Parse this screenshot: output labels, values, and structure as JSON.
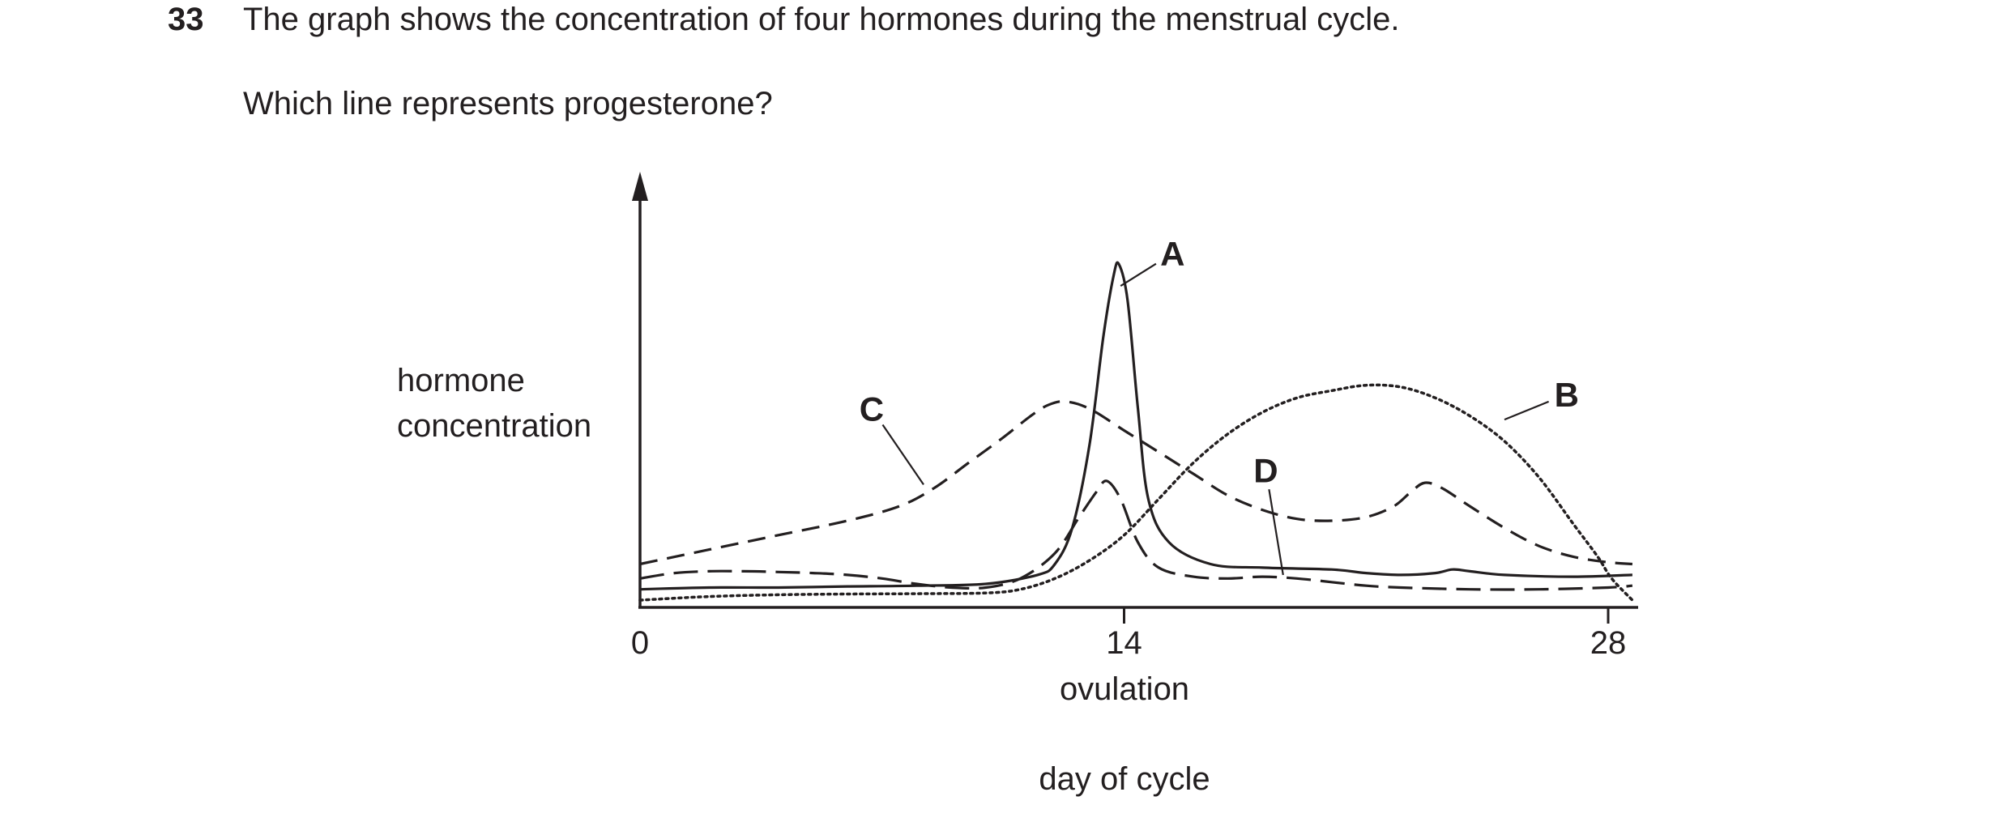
{
  "question": {
    "number": "33",
    "text": "The graph shows the concentration of four hormones during the menstrual cycle.",
    "prompt": "Which line represents progesterone?"
  },
  "chart_data": {
    "type": "line",
    "ylabel_lines": [
      "hormone",
      "concentration"
    ],
    "xlabel": "day of cycle",
    "x_annotation": "ovulation",
    "xlim": [
      0,
      28.7
    ],
    "ylim": [
      0,
      100
    ],
    "x_ticks": [
      {
        "value": 0,
        "label": "0"
      },
      {
        "value": 14,
        "label": "14"
      },
      {
        "value": 28,
        "label": "28"
      }
    ],
    "series": [
      {
        "name": "A",
        "style": "solid",
        "label_at": {
          "x": 15.4,
          "y": 98
        },
        "leader_at": {
          "x": 13.9,
          "y": 89
        },
        "points": [
          [
            0,
            5
          ],
          [
            2,
            5.5
          ],
          [
            4,
            5.5
          ],
          [
            6,
            5.8
          ],
          [
            8,
            6
          ],
          [
            10,
            6.5
          ],
          [
            11.5,
            9
          ],
          [
            12,
            12
          ],
          [
            12.5,
            22
          ],
          [
            13,
            45
          ],
          [
            13.4,
            75
          ],
          [
            13.7,
            92
          ],
          [
            13.85,
            95
          ],
          [
            14.1,
            85
          ],
          [
            14.4,
            55
          ],
          [
            14.7,
            30
          ],
          [
            15.3,
            18
          ],
          [
            16.5,
            12
          ],
          [
            18,
            11
          ],
          [
            20,
            10.5
          ],
          [
            21,
            9.5
          ],
          [
            22,
            9
          ],
          [
            23,
            9.5
          ],
          [
            23.5,
            10.5
          ],
          [
            24,
            10
          ],
          [
            25,
            9
          ],
          [
            27,
            8.5
          ],
          [
            28.7,
            9
          ]
        ]
      },
      {
        "name": "B",
        "style": "dotted",
        "label_at": {
          "x": 26.8,
          "y": 59
        },
        "leader_at": {
          "x": 25,
          "y": 52
        },
        "points": [
          [
            0,
            2
          ],
          [
            2,
            3
          ],
          [
            4,
            3.5
          ],
          [
            6,
            3.7
          ],
          [
            8,
            3.8
          ],
          [
            10,
            4
          ],
          [
            11,
            5
          ],
          [
            12,
            8
          ],
          [
            13,
            13
          ],
          [
            14,
            20
          ],
          [
            15,
            30
          ],
          [
            16,
            40
          ],
          [
            17,
            48
          ],
          [
            18,
            54
          ],
          [
            19,
            58
          ],
          [
            20,
            60
          ],
          [
            21,
            61.5
          ],
          [
            22,
            61
          ],
          [
            23,
            58
          ],
          [
            24,
            53
          ],
          [
            25,
            46
          ],
          [
            26,
            36
          ],
          [
            27,
            23
          ],
          [
            27.7,
            14
          ],
          [
            28.1,
            8
          ],
          [
            28.7,
            2
          ]
        ]
      },
      {
        "name": "C",
        "style": "dashed",
        "label_at": {
          "x": 6.7,
          "y": 55
        },
        "leader_at": {
          "x": 8.2,
          "y": 34
        },
        "points": [
          [
            0,
            12
          ],
          [
            2,
            16
          ],
          [
            4,
            20
          ],
          [
            6,
            24
          ],
          [
            7.5,
            28
          ],
          [
            8.5,
            33
          ],
          [
            9.5,
            40
          ],
          [
            10.5,
            47
          ],
          [
            11.3,
            53
          ],
          [
            11.8,
            56
          ],
          [
            12.3,
            57
          ],
          [
            13,
            55
          ],
          [
            14,
            49
          ],
          [
            15,
            43
          ],
          [
            16,
            37
          ],
          [
            17,
            31
          ],
          [
            18,
            27
          ],
          [
            19,
            24.5
          ],
          [
            20,
            24
          ],
          [
            21,
            25
          ],
          [
            21.8,
            28
          ],
          [
            22.3,
            32
          ],
          [
            22.7,
            34.5
          ],
          [
            23.2,
            33
          ],
          [
            24,
            28
          ],
          [
            25,
            22
          ],
          [
            26,
            17
          ],
          [
            27,
            14
          ],
          [
            28,
            12.5
          ],
          [
            28.7,
            12
          ]
        ]
      },
      {
        "name": "D",
        "style": "dashed",
        "label_at": {
          "x": 18.1,
          "y": 38
        },
        "leader_at": {
          "x": 18.6,
          "y": 9
        },
        "points": [
          [
            0,
            8
          ],
          [
            1,
            9.5
          ],
          [
            2,
            10
          ],
          [
            3,
            10
          ],
          [
            4,
            9.8
          ],
          [
            5,
            9.5
          ],
          [
            6,
            9
          ],
          [
            7,
            8
          ],
          [
            8,
            6.5
          ],
          [
            9,
            5.5
          ],
          [
            10,
            5.5
          ],
          [
            11,
            8
          ],
          [
            12,
            15
          ],
          [
            12.7,
            25
          ],
          [
            13.2,
            32
          ],
          [
            13.5,
            35
          ],
          [
            13.9,
            30
          ],
          [
            14.4,
            18
          ],
          [
            15,
            11
          ],
          [
            16,
            8.5
          ],
          [
            17,
            8
          ],
          [
            18,
            8.5
          ],
          [
            19,
            8
          ],
          [
            20,
            7
          ],
          [
            21,
            6
          ],
          [
            22,
            5.5
          ],
          [
            24,
            5
          ],
          [
            26,
            5
          ],
          [
            28,
            5.5
          ],
          [
            28.7,
            6
          ]
        ]
      }
    ]
  }
}
